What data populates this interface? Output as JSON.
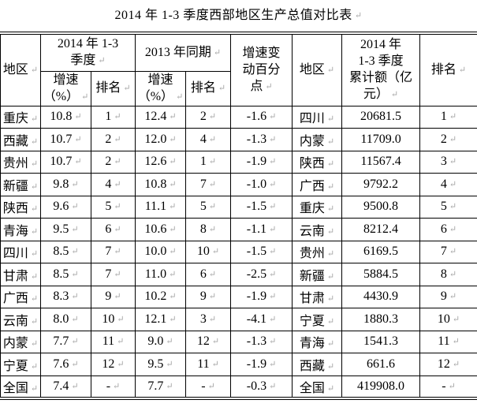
{
  "title": "2014 年 1-3 季度西部地区生产总值对比表",
  "formatting_mark": "↵",
  "table": {
    "header": {
      "region": "地区",
      "period_2014": "2014 年 1-3\n季度",
      "period_2013": "2013 年同期",
      "growth": "增速\n（%）",
      "rank": "排名",
      "change_pp": "增速变\n动百分\n点",
      "region_right": "地区",
      "amount_2014": "2014 年\n1-3 季度\n累计额（亿\n元）",
      "rank_right": "排名"
    },
    "rows": [
      {
        "region": "重庆",
        "g2014": "10.8",
        "r2014": "1",
        "g2013": "12.4",
        "r2013": "2",
        "chg": "-1.6",
        "region2": "四川",
        "amount": "20681.5",
        "rank2": "1",
        "bold_left": false,
        "bold_right": false
      },
      {
        "region": "西藏",
        "g2014": "10.7",
        "r2014": "2",
        "g2013": "12.0",
        "r2013": "4",
        "chg": "-1.3",
        "region2": "内蒙",
        "amount": "11709.0",
        "rank2": "2",
        "bold_left": false,
        "bold_right": false
      },
      {
        "region": "贵州",
        "g2014": "10.7",
        "r2014": "2",
        "g2013": "12.6",
        "r2013": "1",
        "chg": "-1.9",
        "region2": "陕西",
        "amount": "11567.4",
        "rank2": "3",
        "bold_left": false,
        "bold_right": false
      },
      {
        "region": "新疆",
        "g2014": "9.8",
        "r2014": "4",
        "g2013": "10.8",
        "r2013": "7",
        "chg": "-1.0",
        "region2": "广西",
        "amount": "9792.2",
        "rank2": "4",
        "bold_left": false,
        "bold_right": false
      },
      {
        "region": "陕西",
        "g2014": "9.6",
        "r2014": "5",
        "g2013": "11.1",
        "r2013": "5",
        "chg": "-1.5",
        "region2": "重庆",
        "amount": "9500.8",
        "rank2": "5",
        "bold_left": false,
        "bold_right": false
      },
      {
        "region": "青海",
        "g2014": "9.5",
        "r2014": "6",
        "g2013": "10.6",
        "r2013": "8",
        "chg": "-1.1",
        "region2": "云南",
        "amount": "8212.4",
        "rank2": "6",
        "bold_left": false,
        "bold_right": false
      },
      {
        "region": "四川",
        "g2014": "8.5",
        "r2014": "7",
        "g2013": "10.0",
        "r2013": "10",
        "chg": "-1.5",
        "region2": "贵州",
        "amount": "6169.5",
        "rank2": "7",
        "bold_left": false,
        "bold_right": false
      },
      {
        "region": "甘肃",
        "g2014": "8.5",
        "r2014": "7",
        "g2013": "11.0",
        "r2013": "6",
        "chg": "-2.5",
        "region2": "新疆",
        "amount": "5884.5",
        "rank2": "8",
        "bold_left": false,
        "bold_right": false
      },
      {
        "region": "广西",
        "g2014": "8.3",
        "r2014": "9",
        "g2013": "10.2",
        "r2013": "9",
        "chg": "-1.9",
        "region2": "甘肃",
        "amount": "4430.9",
        "rank2": "9",
        "bold_left": false,
        "bold_right": false
      },
      {
        "region": "云南",
        "g2014": "8.0",
        "r2014": "10",
        "g2013": "12.1",
        "r2013": "3",
        "chg": "-4.1",
        "region2": "宁夏",
        "amount": "1880.3",
        "rank2": "10",
        "bold_left": false,
        "bold_right": true
      },
      {
        "region": "内蒙",
        "g2014": "7.7",
        "r2014": "11",
        "g2013": "9.0",
        "r2013": "12",
        "chg": "-1.3",
        "region2": "青海",
        "amount": "1541.3",
        "rank2": "11",
        "bold_left": false,
        "bold_right": false
      },
      {
        "region": "宁夏",
        "g2014": "7.6",
        "r2014": "12",
        "g2013": "9.5",
        "r2013": "11",
        "chg": "-1.9",
        "region2": "西藏",
        "amount": "661.6",
        "rank2": "12",
        "bold_left": true,
        "bold_right": false
      },
      {
        "region": "全国",
        "g2014": "7.4",
        "r2014": "-",
        "g2013": "7.7",
        "r2013": "-",
        "chg": "-0.3",
        "region2": "全国",
        "amount": "419908.0",
        "rank2": "-",
        "bold_left": false,
        "bold_right": false
      }
    ]
  }
}
